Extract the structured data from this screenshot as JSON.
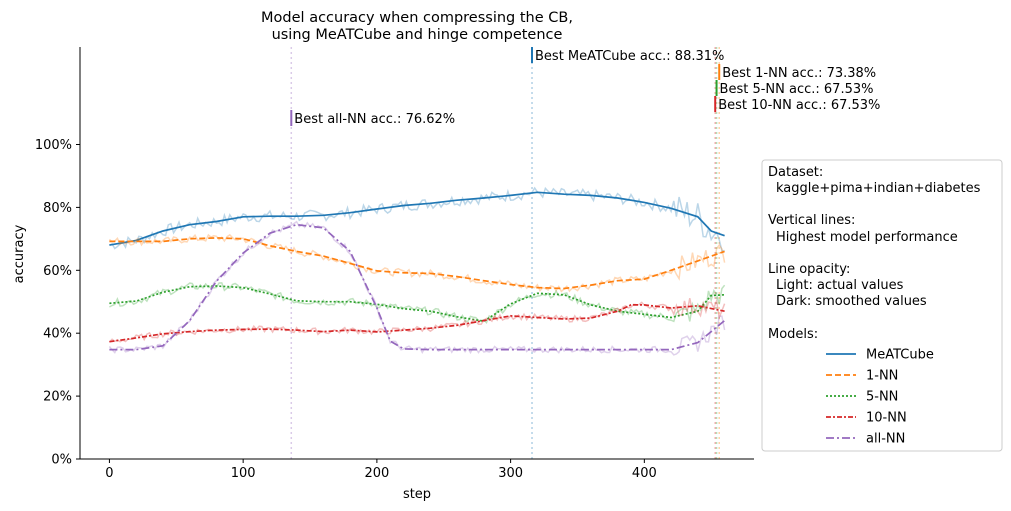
{
  "chart_data": {
    "type": "line",
    "title": [
      "Model accuracy when compressing the CB,",
      "using MeATCube and hinge competence"
    ],
    "xlabel": "step",
    "ylabel": "accuracy",
    "xlim": [
      -22,
      482
    ],
    "ylim": [
      0,
      1.31
    ],
    "x_ticks": [
      0,
      100,
      200,
      300,
      400
    ],
    "y_ticks": [
      0,
      0.2,
      0.4,
      0.6,
      0.8,
      1.0
    ],
    "y_tick_labels": [
      "0%",
      "20%",
      "40%",
      "60%",
      "80%",
      "100%"
    ],
    "grid": false,
    "legend_position": "right",
    "legend": {
      "dataset_heading": "Dataset:",
      "dataset_name": "kaggle+pima+indian+diabetes",
      "vlines_heading": "Vertical lines:",
      "vlines_text": "Highest model performance",
      "opacity_heading": "Line opacity:",
      "opacity_light": "Light: actual values",
      "opacity_dark": "Dark: smoothed values",
      "models_heading": "Models:"
    },
    "series": [
      {
        "name": "MeATCube",
        "color": "#1f77b4",
        "dash": "",
        "noise": 0.018,
        "smoothed": [
          [
            0,
            0.68
          ],
          [
            20,
            0.695
          ],
          [
            40,
            0.725
          ],
          [
            60,
            0.745
          ],
          [
            80,
            0.755
          ],
          [
            100,
            0.77
          ],
          [
            120,
            0.772
          ],
          [
            140,
            0.772
          ],
          [
            160,
            0.775
          ],
          [
            180,
            0.783
          ],
          [
            200,
            0.795
          ],
          [
            220,
            0.806
          ],
          [
            240,
            0.813
          ],
          [
            260,
            0.823
          ],
          [
            280,
            0.83
          ],
          [
            300,
            0.838
          ],
          [
            320,
            0.848
          ],
          [
            340,
            0.842
          ],
          [
            360,
            0.838
          ],
          [
            380,
            0.83
          ],
          [
            400,
            0.816
          ],
          [
            420,
            0.797
          ],
          [
            440,
            0.77
          ],
          [
            450,
            0.725
          ],
          [
            460,
            0.71
          ]
        ]
      },
      {
        "name": "1-NN",
        "color": "#ff7f0e",
        "dash": "6,3",
        "noise": 0.012,
        "smoothed": [
          [
            0,
            0.692
          ],
          [
            20,
            0.692
          ],
          [
            40,
            0.692
          ],
          [
            60,
            0.7
          ],
          [
            80,
            0.703
          ],
          [
            100,
            0.7
          ],
          [
            120,
            0.678
          ],
          [
            140,
            0.66
          ],
          [
            160,
            0.645
          ],
          [
            180,
            0.622
          ],
          [
            200,
            0.598
          ],
          [
            220,
            0.592
          ],
          [
            240,
            0.59
          ],
          [
            260,
            0.58
          ],
          [
            280,
            0.567
          ],
          [
            300,
            0.555
          ],
          [
            320,
            0.545
          ],
          [
            340,
            0.542
          ],
          [
            360,
            0.553
          ],
          [
            380,
            0.567
          ],
          [
            400,
            0.572
          ],
          [
            420,
            0.6
          ],
          [
            440,
            0.63
          ],
          [
            460,
            0.66
          ]
        ]
      },
      {
        "name": "5-NN",
        "color": "#2ca02c",
        "dash": "2,2",
        "noise": 0.012,
        "smoothed": [
          [
            0,
            0.495
          ],
          [
            20,
            0.502
          ],
          [
            40,
            0.53
          ],
          [
            60,
            0.548
          ],
          [
            80,
            0.55
          ],
          [
            100,
            0.545
          ],
          [
            120,
            0.525
          ],
          [
            140,
            0.503
          ],
          [
            160,
            0.5
          ],
          [
            180,
            0.5
          ],
          [
            200,
            0.492
          ],
          [
            220,
            0.478
          ],
          [
            240,
            0.47
          ],
          [
            260,
            0.452
          ],
          [
            280,
            0.438
          ],
          [
            300,
            0.493
          ],
          [
            320,
            0.527
          ],
          [
            340,
            0.522
          ],
          [
            360,
            0.49
          ],
          [
            380,
            0.47
          ],
          [
            400,
            0.46
          ],
          [
            420,
            0.45
          ],
          [
            440,
            0.47
          ],
          [
            450,
            0.52
          ],
          [
            460,
            0.522
          ]
        ]
      },
      {
        "name": "10-NN",
        "color": "#d62728",
        "dash": "5,2,2,2",
        "noise": 0.01,
        "smoothed": [
          [
            0,
            0.373
          ],
          [
            20,
            0.385
          ],
          [
            40,
            0.398
          ],
          [
            60,
            0.405
          ],
          [
            80,
            0.41
          ],
          [
            100,
            0.412
          ],
          [
            120,
            0.413
          ],
          [
            140,
            0.41
          ],
          [
            160,
            0.405
          ],
          [
            180,
            0.41
          ],
          [
            200,
            0.404
          ],
          [
            220,
            0.41
          ],
          [
            240,
            0.416
          ],
          [
            260,
            0.425
          ],
          [
            280,
            0.44
          ],
          [
            300,
            0.455
          ],
          [
            320,
            0.45
          ],
          [
            340,
            0.445
          ],
          [
            360,
            0.448
          ],
          [
            380,
            0.47
          ],
          [
            390,
            0.49
          ],
          [
            400,
            0.49
          ],
          [
            420,
            0.48
          ],
          [
            440,
            0.487
          ],
          [
            460,
            0.47
          ]
        ]
      },
      {
        "name": "all-NN",
        "color": "#9467bd",
        "dash": "8,3,2,3",
        "noise": 0.01,
        "smoothed": [
          [
            0,
            0.348
          ],
          [
            20,
            0.348
          ],
          [
            40,
            0.36
          ],
          [
            60,
            0.44
          ],
          [
            80,
            0.565
          ],
          [
            100,
            0.655
          ],
          [
            120,
            0.718
          ],
          [
            140,
            0.745
          ],
          [
            160,
            0.735
          ],
          [
            180,
            0.66
          ],
          [
            200,
            0.48
          ],
          [
            210,
            0.375
          ],
          [
            220,
            0.35
          ],
          [
            240,
            0.348
          ],
          [
            260,
            0.348
          ],
          [
            300,
            0.348
          ],
          [
            340,
            0.348
          ],
          [
            380,
            0.348
          ],
          [
            420,
            0.348
          ],
          [
            440,
            0.37
          ],
          [
            460,
            0.44
          ]
        ]
      }
    ],
    "best_markers": [
      {
        "step": 136,
        "label": "Best all-NN acc.: 76.62%",
        "color": "#9467bd",
        "order": 0
      },
      {
        "step": 316,
        "label": "Best MeATCube acc.: 88.31%",
        "color": "#1f77b4",
        "order": 0
      },
      {
        "step": 456,
        "label": "Best 1-NN acc.: 73.38%",
        "color": "#ff7f0e",
        "order": 1
      },
      {
        "step": 454,
        "label": "Best 5-NN acc.: 67.53%",
        "color": "#2ca02c",
        "order": 2
      },
      {
        "step": 453,
        "label": "Best 10-NN acc.: 67.53%",
        "color": "#d62728",
        "order": 3
      }
    ]
  }
}
